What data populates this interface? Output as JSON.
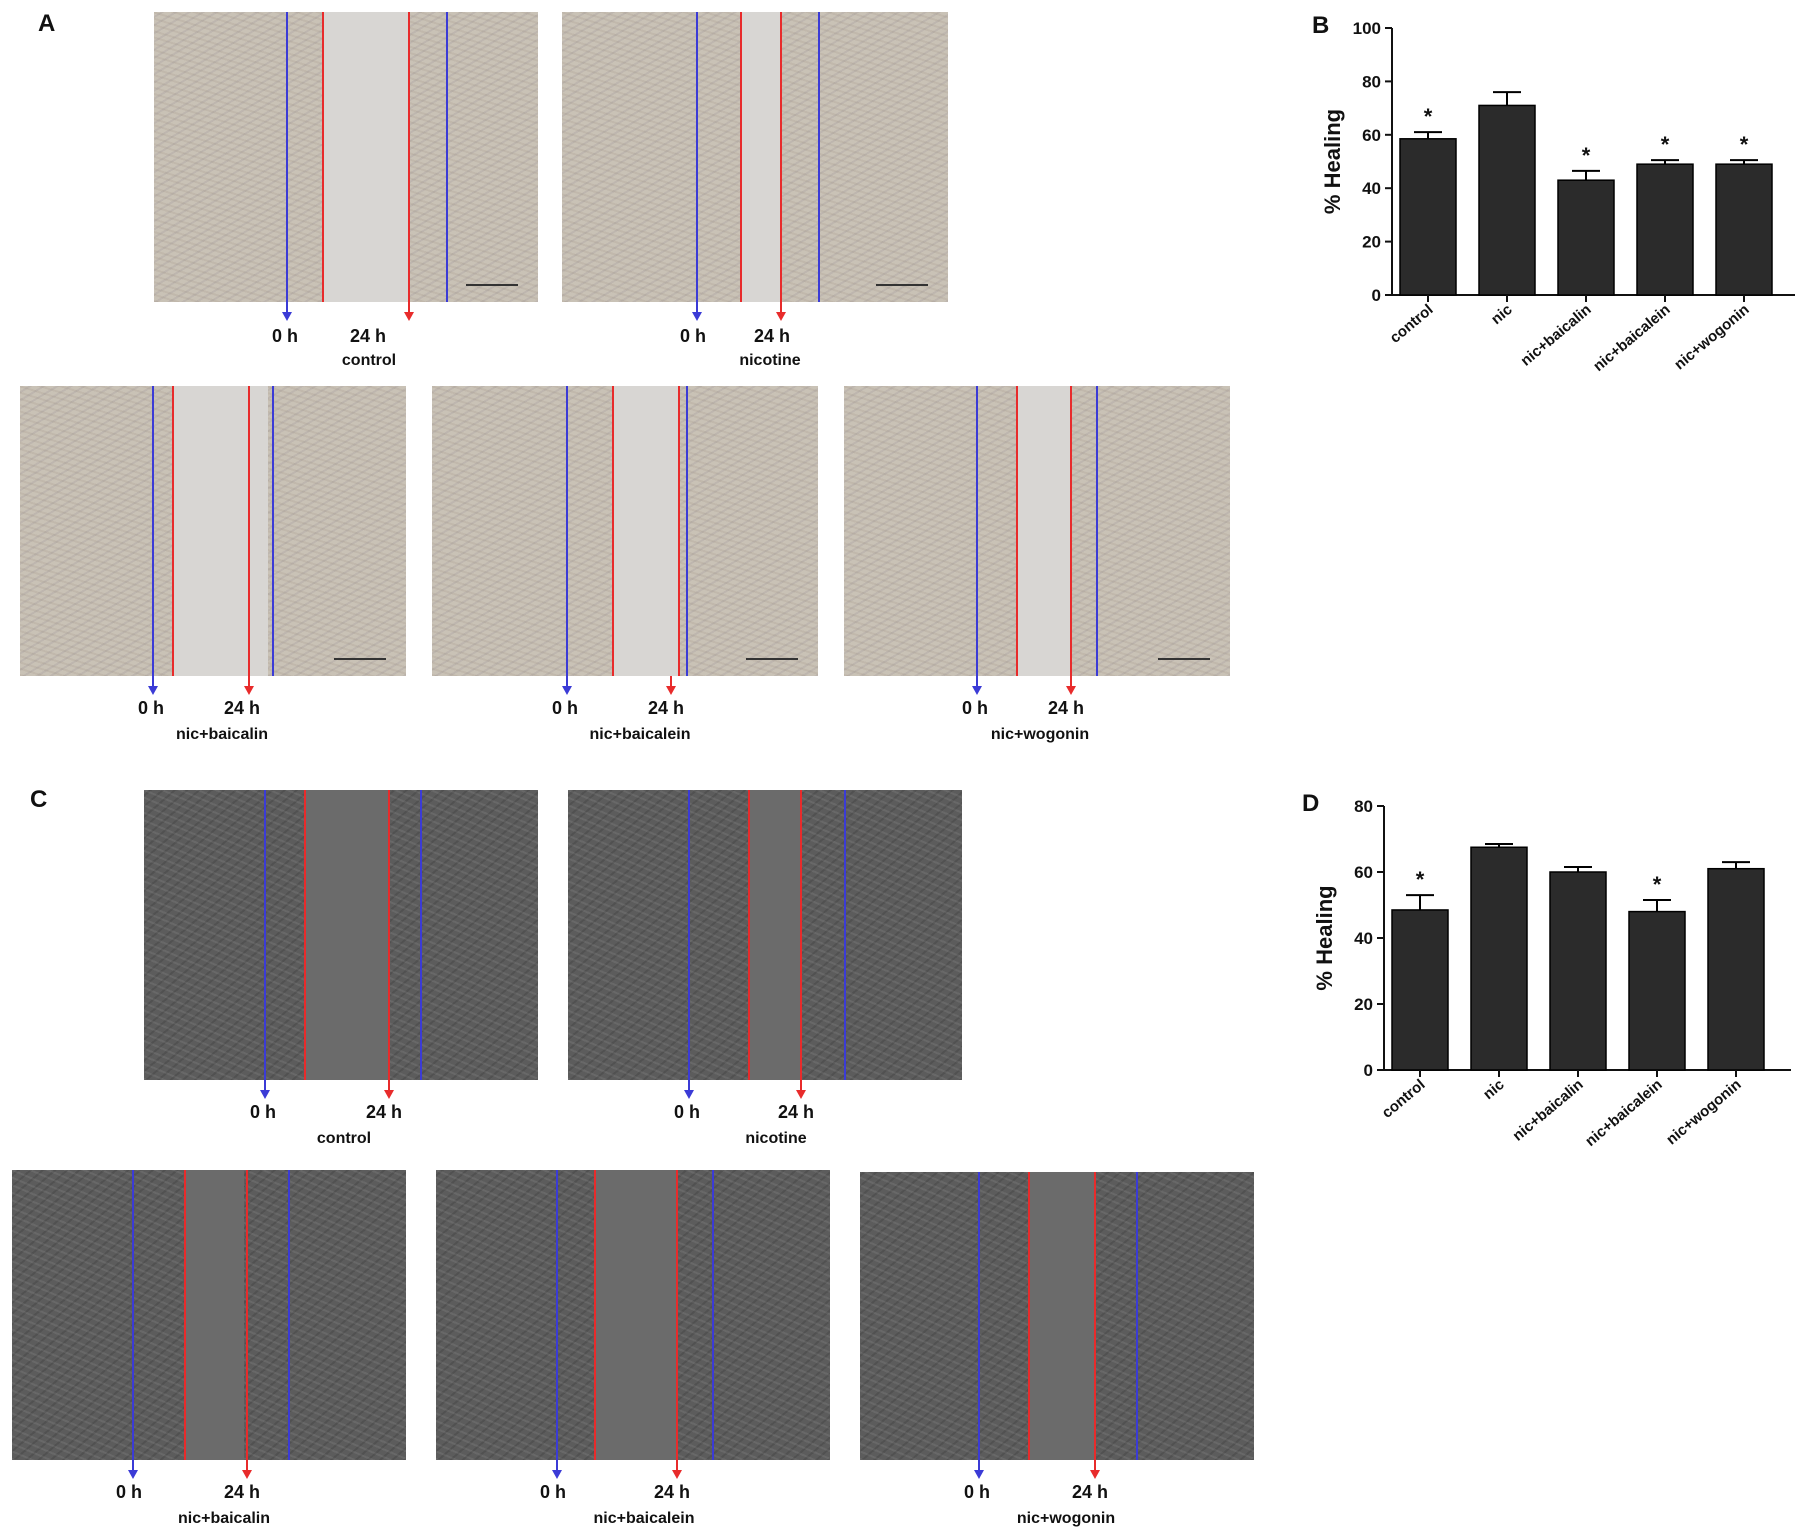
{
  "panels": {
    "A": "A",
    "B": "B",
    "C": "C",
    "D": "D"
  },
  "markers": {
    "t0": "0 h",
    "t24": "24 h"
  },
  "conditions": {
    "control": "control",
    "nicotine": "nicotine",
    "nic_baicalin": "nic+baicalin",
    "nic_baicalein": "nic+baicalein",
    "nic_wogonin": "nic+wogonin"
  },
  "colors": {
    "bar": "#2b2b2b",
    "line_0h": "#3b3bd6",
    "line_24h": "#e82b2b"
  },
  "chart_data": [
    {
      "panel": "B",
      "type": "bar",
      "categories": [
        "control",
        "nic",
        "nic+baicalin",
        "nic+baicalein",
        "nic+wogonin"
      ],
      "values": [
        58.5,
        71,
        43,
        49,
        49
      ],
      "errors": [
        2.5,
        5,
        3.5,
        1.5,
        1.5
      ],
      "significance": [
        "*",
        "",
        "*",
        "*",
        "*"
      ],
      "ylabel": "% Healing",
      "ylim": [
        0,
        100
      ],
      "yticks": [
        0,
        20,
        40,
        60,
        80,
        100
      ]
    },
    {
      "panel": "D",
      "type": "bar",
      "categories": [
        "control",
        "nic",
        "nic+baicalin",
        "nic+baicalein",
        "nic+wogonin"
      ],
      "values": [
        48.5,
        67.5,
        60,
        48,
        61
      ],
      "errors": [
        4.5,
        1,
        1.5,
        3.5,
        2
      ],
      "significance": [
        "*",
        "",
        "",
        "*",
        ""
      ],
      "ylabel": "% Healing",
      "ylim": [
        0,
        80
      ],
      "yticks": [
        0,
        20,
        40,
        60,
        80
      ]
    }
  ]
}
